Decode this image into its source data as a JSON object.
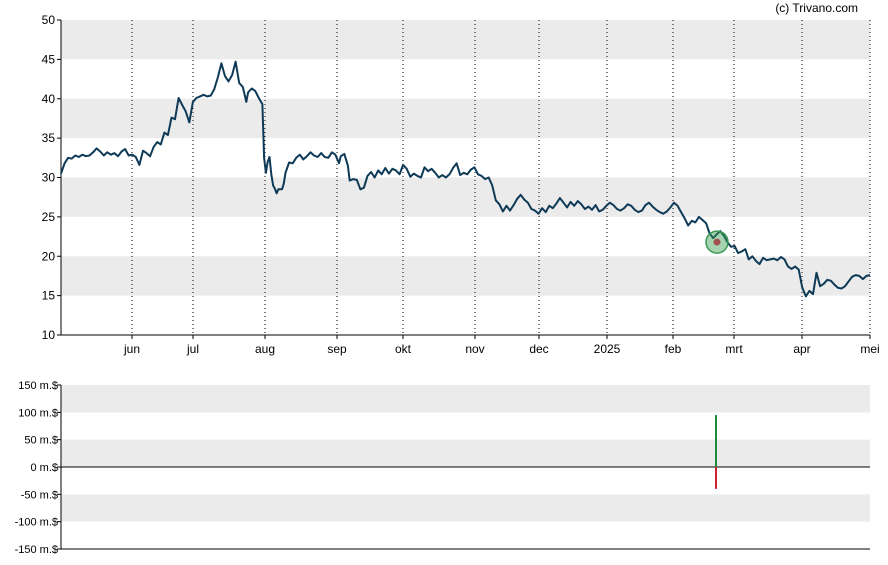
{
  "copyright": "(c) Trivano.com",
  "chart_data": [
    {
      "type": "line",
      "name": "price",
      "x_ticks": [
        "jun",
        "jul",
        "aug",
        "sep",
        "okt",
        "nov",
        "dec",
        "2025",
        "feb",
        "mrt",
        "apr",
        "mei"
      ],
      "ylim": [
        10,
        50
      ],
      "y_ticks": [
        10,
        15,
        20,
        25,
        30,
        35,
        40,
        45,
        50
      ],
      "grid": "alternating horizontal bands, dotted vertical month lines",
      "x_range": [
        0,
        255
      ],
      "series": [
        {
          "color": "#0e3a57",
          "points": [
            [
              0,
              30.5
            ],
            [
              2,
              31.8
            ],
            [
              4,
              32.5
            ],
            [
              6,
              32.4
            ],
            [
              8,
              32.8
            ],
            [
              10,
              32.6
            ],
            [
              12,
              32.9
            ],
            [
              14,
              32.7
            ],
            [
              16,
              32.8
            ],
            [
              18,
              33.2
            ],
            [
              20,
              33.7
            ],
            [
              22,
              33.3
            ],
            [
              24,
              32.8
            ],
            [
              26,
              33.2
            ],
            [
              28,
              32.9
            ],
            [
              30,
              33.1
            ],
            [
              32,
              32.7
            ],
            [
              34,
              33.3
            ],
            [
              36,
              33.6
            ],
            [
              38,
              32.8
            ],
            [
              40,
              32.9
            ],
            [
              42,
              32.6
            ],
            [
              44,
              31.6
            ],
            [
              46,
              33.4
            ],
            [
              48,
              33.1
            ],
            [
              50,
              32.7
            ],
            [
              52,
              33.9
            ],
            [
              54,
              34.5
            ],
            [
              56,
              34.2
            ],
            [
              58,
              35.7
            ],
            [
              60,
              35.4
            ],
            [
              62,
              37.6
            ],
            [
              64,
              37.4
            ],
            [
              66,
              40.1
            ],
            [
              68,
              39.2
            ],
            [
              70,
              38.4
            ],
            [
              72,
              37.0
            ],
            [
              74,
              39.6
            ],
            [
              76,
              40.1
            ],
            [
              78,
              40.3
            ],
            [
              80,
              40.5
            ],
            [
              82,
              40.3
            ],
            [
              84,
              40.4
            ],
            [
              86,
              41.2
            ],
            [
              88,
              42.7
            ],
            [
              90,
              44.5
            ],
            [
              92,
              42.9
            ],
            [
              94,
              42.2
            ],
            [
              96,
              43.0
            ],
            [
              98,
              44.7
            ],
            [
              100,
              42.0
            ],
            [
              102,
              41.5
            ],
            [
              104,
              39.6
            ],
            [
              105,
              40.8
            ],
            [
              107,
              41.3
            ],
            [
              109,
              41.0
            ],
            [
              111,
              40.1
            ],
            [
              113,
              39.3
            ],
            [
              114,
              32.5
            ],
            [
              115,
              30.6
            ],
            [
              116,
              32.0
            ],
            [
              117,
              32.6
            ],
            [
              118,
              30.4
            ],
            [
              119,
              29.0
            ],
            [
              120,
              28.6
            ],
            [
              121,
              28.0
            ],
            [
              122,
              28.5
            ],
            [
              124,
              28.5
            ],
            [
              125,
              29.2
            ],
            [
              126,
              30.6
            ],
            [
              128,
              31.9
            ],
            [
              130,
              31.8
            ],
            [
              132,
              32.5
            ],
            [
              134,
              32.9
            ],
            [
              136,
              32.3
            ],
            [
              138,
              32.7
            ],
            [
              140,
              33.2
            ],
            [
              142,
              32.8
            ],
            [
              144,
              32.6
            ],
            [
              146,
              33.1
            ],
            [
              148,
              32.6
            ],
            [
              150,
              32.5
            ],
            [
              152,
              33.2
            ],
            [
              154,
              32.9
            ],
            [
              156,
              31.8
            ],
            [
              157,
              32.7
            ],
            [
              159,
              33.0
            ],
            [
              161,
              31.5
            ],
            [
              162,
              29.6
            ],
            [
              164,
              29.8
            ],
            [
              166,
              29.7
            ],
            [
              168,
              28.5
            ],
            [
              170,
              28.7
            ],
            [
              172,
              30.2
            ],
            [
              174,
              30.7
            ],
            [
              176,
              30.0
            ],
            [
              178,
              30.9
            ],
            [
              180,
              30.4
            ],
            [
              182,
              31.2
            ],
            [
              184,
              30.5
            ],
            [
              186,
              31.1
            ],
            [
              188,
              30.9
            ],
            [
              190,
              30.4
            ],
            [
              192,
              31.6
            ],
            [
              194,
              31.1
            ],
            [
              196,
              30.1
            ],
            [
              198,
              30.5
            ],
            [
              200,
              30.2
            ],
            [
              202,
              30.0
            ],
            [
              204,
              31.3
            ],
            [
              206,
              30.8
            ],
            [
              208,
              31.1
            ],
            [
              210,
              30.6
            ],
            [
              212,
              30.0
            ],
            [
              214,
              30.3
            ],
            [
              216,
              30.0
            ],
            [
              218,
              30.4
            ],
            [
              220,
              31.2
            ],
            [
              222,
              31.8
            ],
            [
              224,
              30.3
            ],
            [
              226,
              30.6
            ],
            [
              228,
              30.4
            ],
            [
              230,
              31.0
            ],
            [
              232,
              31.3
            ],
            [
              234,
              30.4
            ],
            [
              236,
              30.2
            ],
            [
              238,
              29.8
            ],
            [
              240,
              30.0
            ],
            [
              242,
              29.0
            ],
            [
              244,
              27.1
            ],
            [
              246,
              26.6
            ],
            [
              248,
              25.7
            ],
            [
              250,
              26.4
            ],
            [
              252,
              25.8
            ]
          ]
        }
      ],
      "marker": {
        "at_x": 0,
        "value": 0
      }
    },
    {
      "type": "bar",
      "name": "insider",
      "ylim": [
        -150,
        150
      ],
      "y_ticks": [
        -150,
        -100,
        -50,
        0,
        50,
        100,
        150
      ],
      "y_tick_labels": [
        "-150 m.$",
        "-100 m.$",
        "-50 m.$",
        "0 m.$",
        "50 m.$",
        "100 m.$",
        "150 m.$"
      ],
      "bars": [
        {
          "value": 95,
          "color": "#1e8a3c"
        },
        {
          "value": -40,
          "color": "#cc2233"
        }
      ]
    }
  ]
}
